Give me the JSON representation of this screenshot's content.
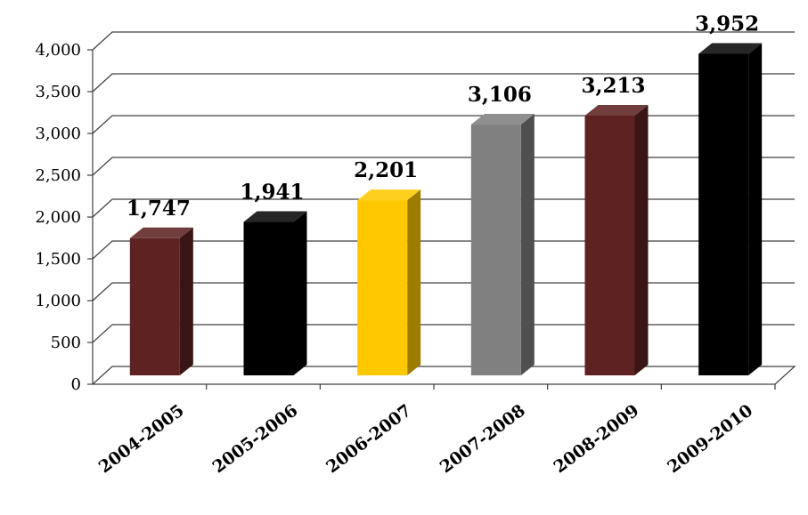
{
  "chart_data": {
    "type": "bar",
    "categories": [
      "2004-2005",
      "2005-2006",
      "2006-2007",
      "2007-2008",
      "2008-2009",
      "2009-2010"
    ],
    "values": [
      1747,
      1941,
      2201,
      3106,
      3213,
      3952
    ],
    "value_labels": [
      "1,747",
      "1,941",
      "2,201",
      "3,106",
      "3,213",
      "3,952"
    ],
    "bar_colors": [
      "#5e2222",
      "#000000",
      "#ffc800",
      "#808080",
      "#5e2222",
      "#000000"
    ],
    "ylim": [
      0,
      4000
    ],
    "yticks": [
      0,
      500,
      1000,
      1500,
      2000,
      2500,
      3000,
      3500,
      4000
    ],
    "ytick_labels": [
      "0",
      "500",
      "1,000",
      "1,500",
      "2,000",
      "2,500",
      "3,000",
      "3,500",
      "4,000"
    ],
    "grid": true,
    "style": "3d-column"
  }
}
